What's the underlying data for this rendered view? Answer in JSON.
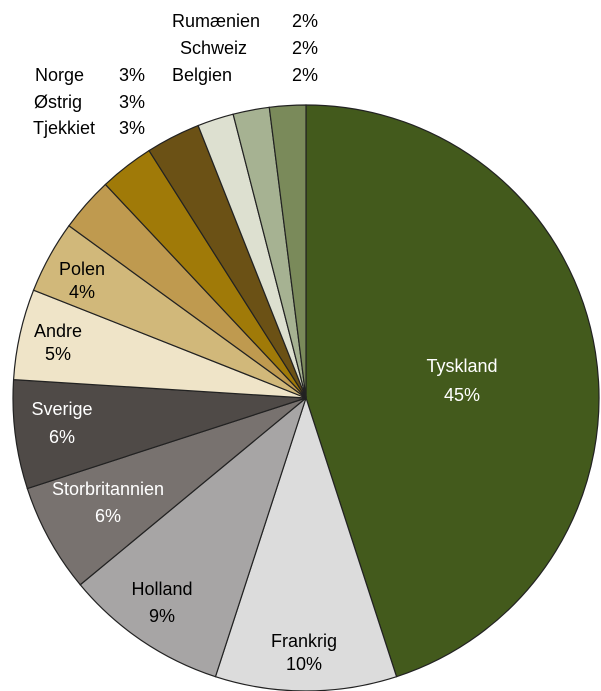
{
  "chart_data": {
    "type": "pie",
    "categories": [
      "Tyskland",
      "Frankrig",
      "Holland",
      "Storbritannien",
      "Sverige",
      "Andre",
      "Polen",
      "Tjekkiet",
      "Østrig",
      "Norge",
      "Rumænien",
      "Schweiz",
      "Belgien"
    ],
    "values": [
      45,
      10,
      9,
      6,
      6,
      5,
      4,
      3,
      3,
      3,
      2,
      2,
      2
    ],
    "value_labels": [
      "45%",
      "10%",
      "9%",
      "6%",
      "6%",
      "5%",
      "4%",
      "3%",
      "3%",
      "3%",
      "2%",
      "2%",
      "2%"
    ],
    "colors": [
      "#435a1c",
      "#dcdcdc",
      "#a7a5a5",
      "#78726f",
      "#4f4a47",
      "#efe4c8",
      "#d1b87a",
      "#bf9a4f",
      "#a07a08",
      "#6b5115",
      "#dde0d0",
      "#a6b292",
      "#7a8a5a"
    ]
  }
}
